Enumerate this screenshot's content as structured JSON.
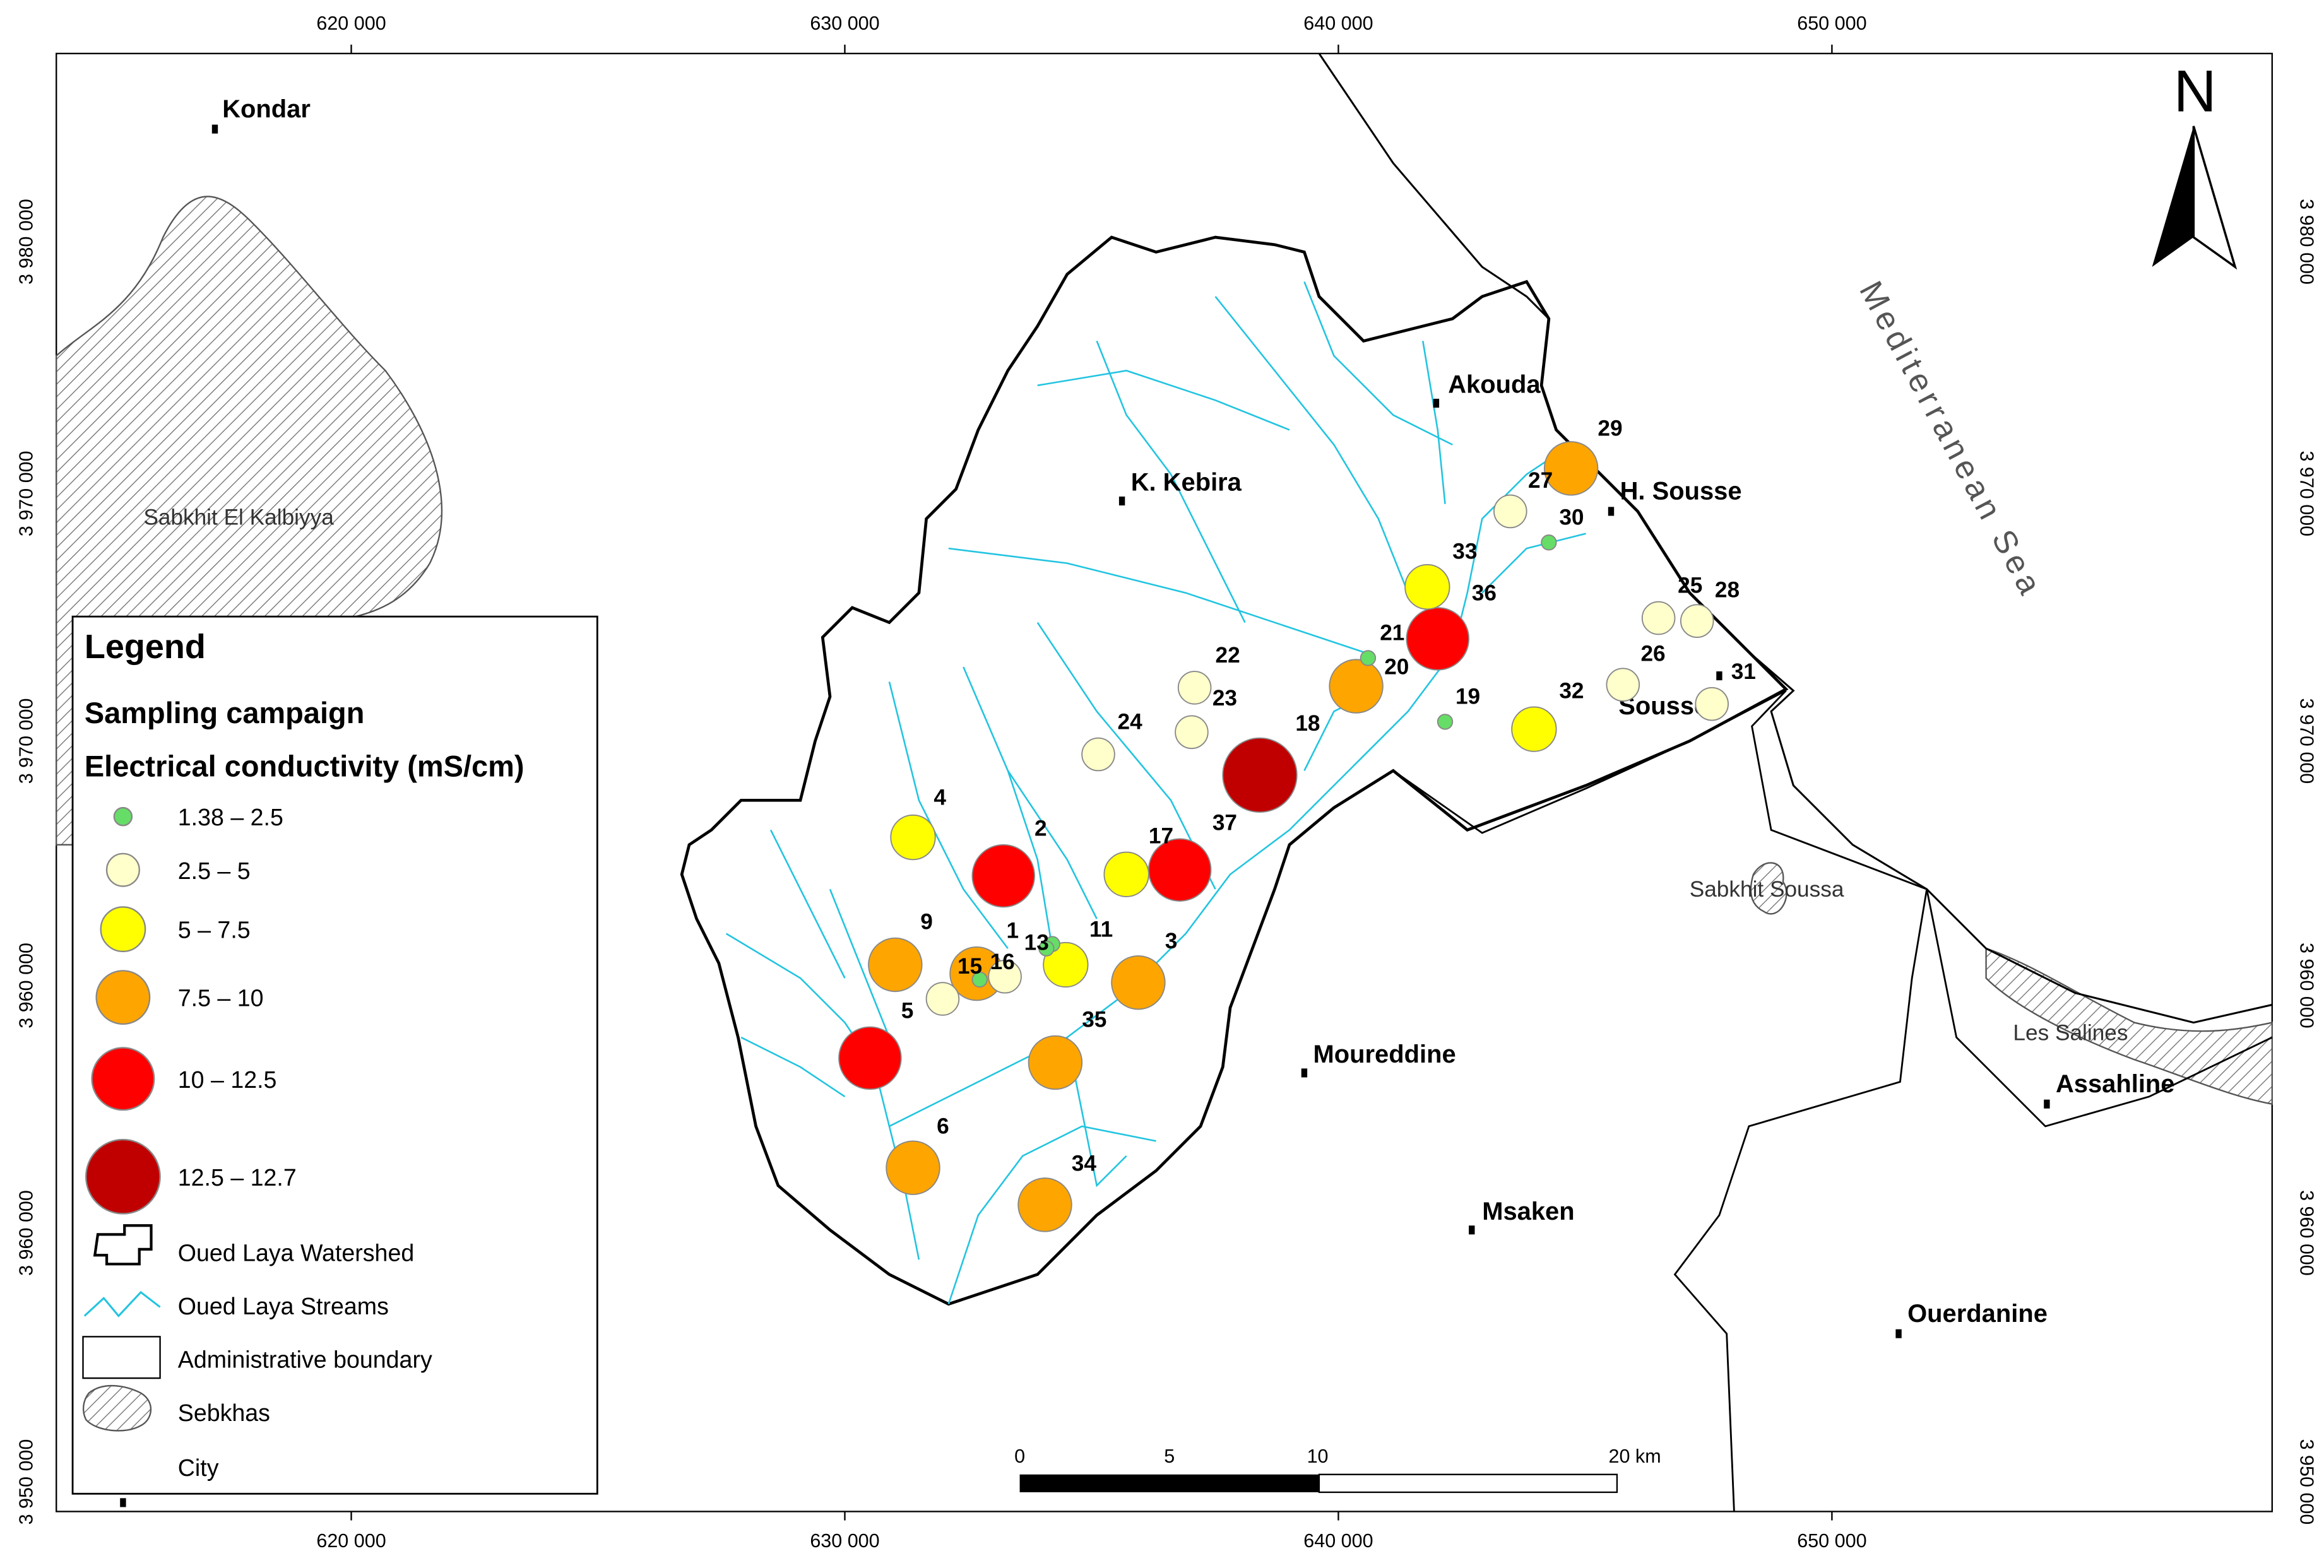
{
  "map_frame": {
    "x_labels": [
      "620 000",
      "630 000",
      "640 000",
      "650 000"
    ],
    "y_labels": [
      "3 980 000",
      "3 970 000",
      "3 970 000",
      "3 960 000",
      "3 960 000",
      "3 950 000"
    ]
  },
  "north": "N",
  "places": [
    "Sabkhit  El Kalbiyya",
    "Sabkhit Soussa",
    "Les Salines",
    "Mediterranean Sea"
  ],
  "cities": [
    "Kondar",
    "Akouda",
    "K. Kebira",
    "H. Sousse",
    "Sousse",
    "Moureddine",
    "Msaken",
    "Ouerdanine",
    "Assahline"
  ],
  "samples": [
    {
      "label": "29",
      "color": "#ffa500"
    },
    {
      "label": "27",
      "color": "#ffffcc"
    },
    {
      "label": "30",
      "color": "#66dd66"
    },
    {
      "label": "33",
      "color": "#ffff00"
    },
    {
      "label": "36",
      "color": "#ff0000"
    },
    {
      "label": "21",
      "color": "#66dd66"
    },
    {
      "label": "20",
      "color": "#ffa500"
    },
    {
      "label": "19",
      "color": "#66dd66"
    },
    {
      "label": "22",
      "color": "#ffffcc"
    },
    {
      "label": "23",
      "color": "#ffffcc"
    },
    {
      "label": "24",
      "color": "#ffffcc"
    },
    {
      "label": "18",
      "color": "#c00000"
    },
    {
      "label": "32",
      "color": "#ffff00"
    },
    {
      "label": "25",
      "color": "#ffffcc"
    },
    {
      "label": "28",
      "color": "#ffffcc"
    },
    {
      "label": "26",
      "color": "#ffffcc"
    },
    {
      "label": "31",
      "color": "#ffffcc"
    },
    {
      "label": "4",
      "color": "#ffff00"
    },
    {
      "label": "2",
      "color": "#ff0000"
    },
    {
      "label": "17",
      "color": "#ffff00"
    },
    {
      "label": "37",
      "color": "#ff0000"
    },
    {
      "label": "9",
      "color": "#ffa500"
    },
    {
      "label": "11",
      "color": "#ffff00"
    },
    {
      "label": "3",
      "color": "#ffa500"
    },
    {
      "label": null,
      "color": "#ffa500"
    },
    {
      "label": "16",
      "color": "#ffffcc"
    },
    {
      "label": "15",
      "color": "#66dd66"
    },
    {
      "label": "1",
      "color": "#66dd66"
    },
    {
      "label": "13",
      "color": "#66dd66"
    },
    {
      "label": "5",
      "color": "#ffffcc"
    },
    {
      "label": "35",
      "color": "#ffa500"
    },
    {
      "label": null,
      "color": "#ff0000"
    },
    {
      "label": "6",
      "color": "#ffa500"
    },
    {
      "label": "34",
      "color": "#ffa500"
    }
  ],
  "legend": {
    "title": "Legend",
    "subtitle": "Sampling campaign",
    "variable": "Electrical conductivity (mS/cm)",
    "classes": [
      {
        "label": "1.38 – 2.5",
        "color": "#66dd66"
      },
      {
        "label": "2.5 – 5",
        "color": "#ffffcc"
      },
      {
        "label": "5 – 7.5",
        "color": "#ffff00"
      },
      {
        "label": "7.5 – 10",
        "color": "#ffa500"
      },
      {
        "label": "10 – 12.5",
        "color": "#ff0000"
      },
      {
        "label": "12.5 – 12.7",
        "color": "#c00000"
      }
    ],
    "layers": [
      "Oued Laya Watershed",
      "Oued Laya Streams",
      "Administrative boundary",
      "Sebkhas",
      "City"
    ]
  },
  "scale_bar": [
    "0",
    "5",
    "10",
    "20 km"
  ]
}
